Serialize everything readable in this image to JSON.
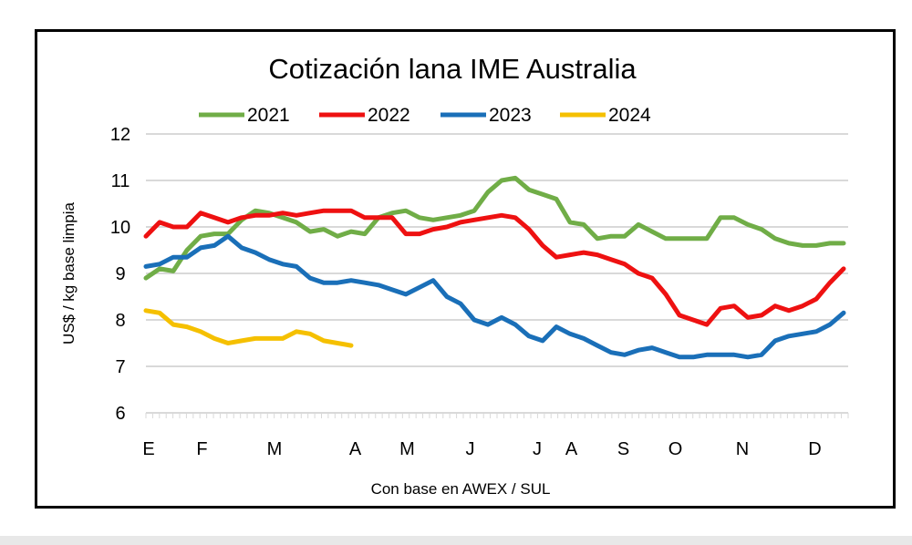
{
  "chart_data": {
    "type": "line",
    "title": "Cotización lana IME Australia",
    "xlabel": "Con base en AWEX / SUL",
    "ylabel": "US$ / kg base limpia",
    "ylim": [
      6,
      12
    ],
    "yticks": [
      6,
      7,
      8,
      9,
      10,
      11,
      12
    ],
    "xlim_weeks": [
      1,
      52
    ],
    "grid": "horizontal",
    "legend": "top",
    "month_ticks": [
      {
        "label": "E",
        "week": 1.2
      },
      {
        "label": "F",
        "week": 5.1
      },
      {
        "label": "M",
        "week": 10.4
      },
      {
        "label": "A",
        "week": 16.3
      },
      {
        "label": "M",
        "week": 20.1
      },
      {
        "label": "J",
        "week": 24.7
      },
      {
        "label": "J",
        "week": 29.6
      },
      {
        "label": "A",
        "week": 32.1
      },
      {
        "label": "S",
        "week": 35.9
      },
      {
        "label": "O",
        "week": 39.7
      },
      {
        "label": "N",
        "week": 44.6
      },
      {
        "label": "D",
        "week": 49.9
      }
    ],
    "series": [
      {
        "name": "2021",
        "color": "#70ad47",
        "values": [
          8.9,
          9.1,
          9.05,
          9.5,
          9.8,
          9.85,
          9.85,
          10.15,
          10.35,
          10.3,
          10.2,
          10.1,
          9.9,
          9.95,
          9.8,
          9.9,
          9.85,
          10.2,
          10.3,
          10.35,
          10.2,
          10.15,
          10.2,
          10.25,
          10.35,
          10.75,
          11.0,
          11.05,
          10.8,
          10.7,
          10.6,
          10.1,
          10.05,
          9.75,
          9.8,
          9.8,
          10.05,
          9.9,
          9.75,
          9.75,
          9.75,
          9.75,
          10.2,
          10.2,
          10.05,
          9.95,
          9.75,
          9.65,
          9.6,
          9.6,
          9.65,
          9.65
        ]
      },
      {
        "name": "2022",
        "color": "#ee1111",
        "values": [
          9.8,
          10.1,
          10.0,
          10.0,
          10.3,
          10.2,
          10.1,
          10.2,
          10.25,
          10.25,
          10.3,
          10.25,
          10.3,
          10.35,
          10.35,
          10.35,
          10.2,
          10.2,
          10.2,
          9.85,
          9.85,
          9.95,
          10.0,
          10.1,
          10.15,
          10.2,
          10.25,
          10.2,
          9.95,
          9.6,
          9.35,
          9.4,
          9.45,
          9.4,
          9.3,
          9.2,
          9.0,
          8.9,
          8.55,
          8.1,
          8.0,
          7.9,
          8.25,
          8.3,
          8.05,
          8.1,
          8.3,
          8.2,
          8.3,
          8.45,
          8.8,
          9.1
        ]
      },
      {
        "name": "2023",
        "color": "#1a6fb8",
        "values": [
          9.15,
          9.2,
          9.35,
          9.35,
          9.55,
          9.6,
          9.8,
          9.55,
          9.45,
          9.3,
          9.2,
          9.15,
          8.9,
          8.8,
          8.8,
          8.85,
          8.8,
          8.75,
          8.65,
          8.55,
          8.7,
          8.85,
          8.5,
          8.35,
          8.0,
          7.9,
          8.05,
          7.9,
          7.65,
          7.55,
          7.85,
          7.7,
          7.6,
          7.45,
          7.3,
          7.25,
          7.35,
          7.4,
          7.3,
          7.2,
          7.2,
          7.25,
          7.25,
          7.25,
          7.2,
          7.25,
          7.55,
          7.65,
          7.7,
          7.75,
          7.9,
          8.15
        ]
      },
      {
        "name": "2024",
        "color": "#f5c000",
        "values": [
          8.2,
          8.15,
          7.9,
          7.85,
          7.75,
          7.6,
          7.5,
          7.55,
          7.6,
          7.6,
          7.6,
          7.75,
          7.7,
          7.55,
          7.5,
          7.45
        ]
      }
    ]
  }
}
